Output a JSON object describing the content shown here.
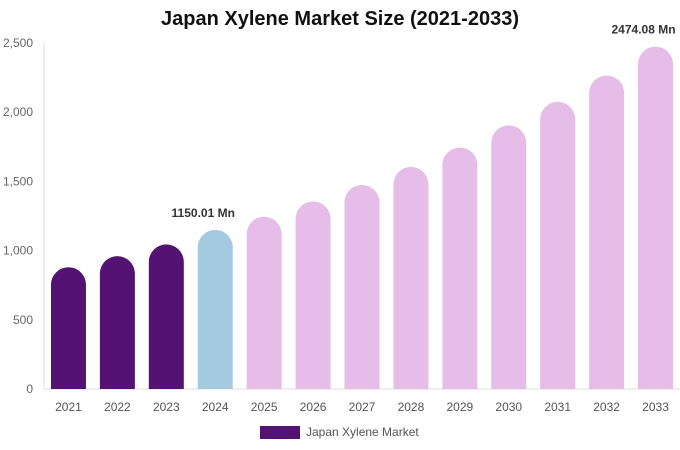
{
  "chart_data": {
    "type": "bar",
    "title": "Japan Xylene Market Size (2021-2033)",
    "categories": [
      "2021",
      "2022",
      "2023",
      "2024",
      "2025",
      "2026",
      "2027",
      "2028",
      "2029",
      "2030",
      "2031",
      "2032",
      "2033"
    ],
    "series": [
      {
        "name": "Japan Xylene Market",
        "values": [
          880,
          960,
          1045,
          1150.01,
          1245,
          1355,
          1475,
          1605,
          1745,
          1905,
          2075,
          2265,
          2474.08
        ]
      }
    ],
    "ylim": [
      0,
      2500
    ],
    "yticks": [
      0,
      500,
      1000,
      1500,
      2000,
      2500
    ],
    "ytick_labels": [
      "0",
      "500",
      "1,000",
      "1,500",
      "2,000",
      "2,500"
    ],
    "annotations": [
      {
        "category": "2024",
        "text": "1150.01 Mn"
      },
      {
        "category": "2033",
        "text": "2474.08 Mn"
      }
    ],
    "bar_colors": {
      "historical": "#521373",
      "base_year": "#a3cadf",
      "forecast": "#e6bde8"
    },
    "grid": false,
    "legend_position": "bottom"
  }
}
